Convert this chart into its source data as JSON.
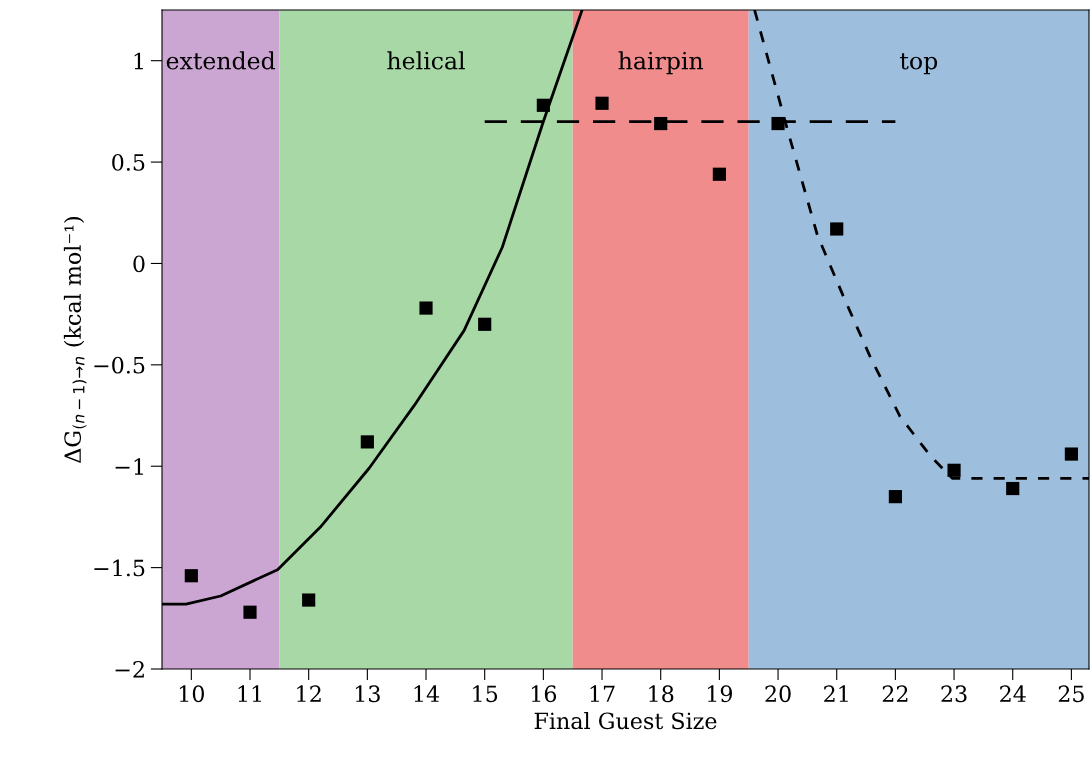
{
  "chart_data": {
    "type": "scatter",
    "xlabel": "Final Guest Size",
    "ylabel": "ΔG$_{(n−1)→n}$ (kcal mol⁻¹)",
    "xlim": [
      9.5,
      25.3
    ],
    "ylim": [
      -2,
      1.25
    ],
    "xticks": [
      10,
      11,
      12,
      13,
      14,
      15,
      16,
      17,
      18,
      19,
      20,
      21,
      22,
      23,
      24,
      25
    ],
    "yticks": [
      {
        "value": -2,
        "label": "−2"
      },
      {
        "value": -1.5,
        "label": "−1.5"
      },
      {
        "value": -1,
        "label": "−1"
      },
      {
        "value": -0.5,
        "label": "−0.5"
      },
      {
        "value": 0,
        "label": "0"
      },
      {
        "value": 0.5,
        "label": "0.5"
      },
      {
        "value": 1,
        "label": "1"
      }
    ],
    "grid": false,
    "marker": "square",
    "bands": [
      {
        "axis": "x",
        "from": 9.5,
        "to": 11.5,
        "label": "extended",
        "color": "#cca6d2"
      },
      {
        "axis": "x",
        "from": 11.5,
        "to": 16.5,
        "label": "helical",
        "color": "#a8d8a6"
      },
      {
        "axis": "x",
        "from": 16.5,
        "to": 19.5,
        "label": "hairpin",
        "color": "#f08c8c"
      },
      {
        "axis": "x",
        "from": 19.5,
        "to": 25.3,
        "label": "top",
        "color": "#9dbfdd"
      }
    ],
    "series": [
      {
        "color": "#000000",
        "x": [
          10,
          11,
          12,
          13,
          14,
          15,
          16,
          17,
          18,
          19,
          20,
          21,
          22,
          23,
          24,
          25
        ],
        "values": [
          -1.54,
          -1.72,
          -1.66,
          -0.88,
          -0.22,
          -0.3,
          0.78,
          0.79,
          0.69,
          0.44,
          0.69,
          0.17,
          -1.15,
          -1.02,
          -1.11,
          -0.94
        ]
      },
      {
        "type": "line",
        "color": "#000000",
        "line_style": "solid",
        "marker": "none",
        "x": [
          9.5,
          9.91,
          10.5,
          11.47,
          12.2,
          13.03,
          13.8,
          14.65,
          15.3,
          16.0,
          16.66
        ],
        "values": [
          -1.68,
          -1.68,
          -1.64,
          -1.51,
          -1.3,
          -1.01,
          -0.7,
          -0.33,
          0.08,
          0.7,
          1.25
        ]
      },
      {
        "type": "line",
        "color": "#000000",
        "line_style": "dashed",
        "marker": "none",
        "x": [
          15,
          22
        ],
        "values": [
          0.7,
          0.7
        ]
      },
      {
        "type": "line",
        "color": "#000000",
        "line_style": "dotted",
        "marker": "none",
        "x": [
          19.6,
          20.16,
          20.67,
          21.11,
          21.57,
          22.08,
          22.6,
          22.97,
          25.3
        ],
        "values": [
          1.25,
          0.66,
          0.14,
          -0.16,
          -0.46,
          -0.755,
          -0.95,
          -1.06,
          -1.06
        ]
      }
    ]
  }
}
